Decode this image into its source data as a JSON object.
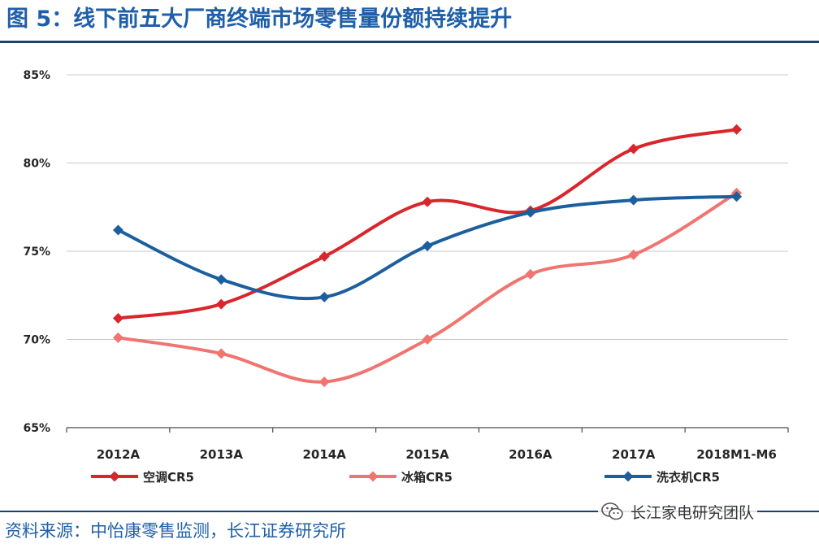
{
  "figure": {
    "title": "图 5：线下前五大厂商终端市场零售量份额持续提升",
    "source": "资料来源：中怡康零售监测，长江证券研究所",
    "watermark": "长江家电研究团队",
    "colors": {
      "title": "#1f5fa8",
      "rule": "#1c3f75"
    }
  },
  "chart_data": {
    "type": "line",
    "title": "",
    "xlabel": "",
    "ylabel": "",
    "categories": [
      "2012A",
      "2013A",
      "2014A",
      "2015A",
      "2016A",
      "2017A",
      "2018M1-M6"
    ],
    "y_ticks": [
      "65%",
      "70%",
      "75%",
      "80%",
      "85%"
    ],
    "ylim": [
      65,
      85
    ],
    "grid": true,
    "legend_position": "bottom",
    "series": [
      {
        "name": "空调CR5",
        "color": "#d9262c",
        "marker": "diamond",
        "values": [
          71.2,
          72.0,
          74.7,
          77.8,
          77.3,
          80.8,
          81.9
        ]
      },
      {
        "name": "冰箱CR5",
        "color": "#f07470",
        "marker": "diamond",
        "values": [
          70.1,
          69.2,
          67.6,
          70.0,
          73.7,
          74.8,
          78.3
        ]
      },
      {
        "name": "洗衣机CR5",
        "color": "#1c5f9e",
        "marker": "diamond",
        "values": [
          76.2,
          73.4,
          72.4,
          75.3,
          77.2,
          77.9,
          78.1
        ]
      }
    ]
  }
}
